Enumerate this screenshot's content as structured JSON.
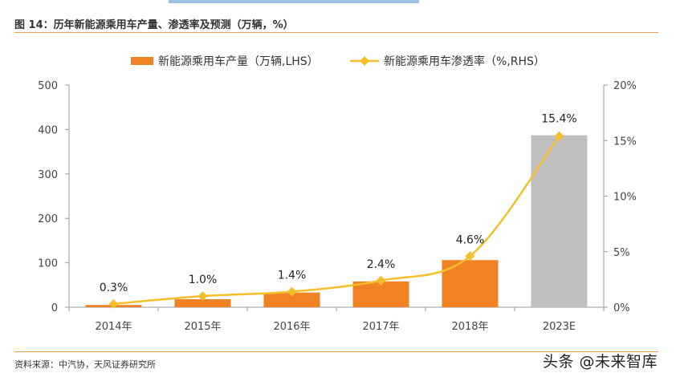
{
  "figure": {
    "title": "图 14：历年新能源乘用车产量、渗透率及预测（万辆，%）",
    "source": "资料来源：中汽协，天风证券研究所",
    "watermark": "头条 @未来智库"
  },
  "chart_data": {
    "type": "bar",
    "categories": [
      "2014年",
      "2015年",
      "2016年",
      "2017年",
      "2018年",
      "2023E"
    ],
    "series": [
      {
        "name": "新能源乘用车产量（万辆,LHS）",
        "kind": "bar",
        "axis": "left",
        "values": [
          5,
          18,
          33,
          58,
          106,
          387
        ],
        "colors": [
          "#f08224",
          "#f08224",
          "#f08224",
          "#f08224",
          "#f08224",
          "#bfbfbf"
        ]
      },
      {
        "name": "新能源乘用车渗透率（%,RHS）",
        "kind": "line",
        "axis": "right",
        "values": [
          0.3,
          1.0,
          1.4,
          2.4,
          4.6,
          15.4
        ],
        "data_labels": [
          "0.3%",
          "1.0%",
          "1.4%",
          "2.4%",
          "4.6%",
          "15.4%"
        ],
        "color": "#f5bf2c"
      }
    ],
    "y_left": {
      "ylim": [
        0,
        500
      ],
      "ticks": [
        "0",
        "100",
        "200",
        "300",
        "400",
        "500"
      ]
    },
    "y_right": {
      "ylim": [
        0,
        20
      ],
      "ticks": [
        "0%",
        "5%",
        "10%",
        "15%",
        "20%"
      ]
    },
    "grid": false,
    "legend": "top-center"
  }
}
